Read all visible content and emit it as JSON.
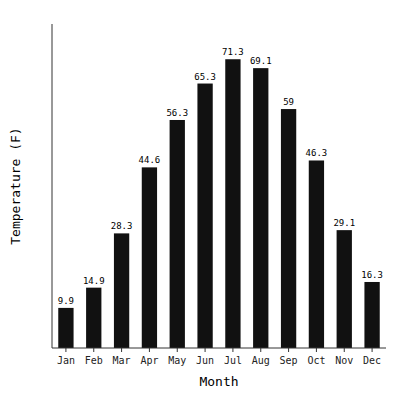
{
  "chart_data": {
    "type": "bar",
    "categories": [
      "Jan",
      "Feb",
      "Mar",
      "Apr",
      "May",
      "Jun",
      "Jul",
      "Aug",
      "Sep",
      "Oct",
      "Nov",
      "Dec"
    ],
    "values": [
      9.9,
      14.9,
      28.3,
      44.6,
      56.3,
      65.3,
      71.3,
      69.1,
      59.0,
      46.3,
      29.1,
      16.3
    ],
    "color": "#111111",
    "x_label": "Month",
    "y_label": "Temperature (F)",
    "ylim": [
      0,
      80
    ],
    "yticks": [],
    "tick_labels": "x",
    "data_labels": true,
    "grid": false
  }
}
